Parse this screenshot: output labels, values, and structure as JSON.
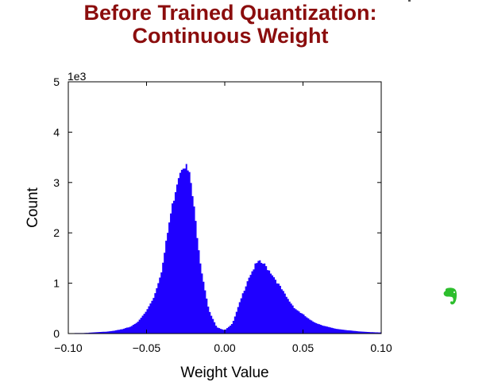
{
  "title": {
    "line1": "Before Trained Quantization:",
    "line2": "Continuous Weight"
  },
  "evernote_icon": {
    "icon": "evernote-elephant-icon",
    "color": "#2dbe2d"
  },
  "chart_data": {
    "type": "histogram",
    "xlabel": "Weight Value",
    "ylabel": "Count",
    "y_scale_label": "1e3",
    "xlim": [
      -0.1,
      0.1
    ],
    "ylim": [
      0,
      5000
    ],
    "xticks": [
      -0.1,
      -0.05,
      0.0,
      0.05,
      0.1
    ],
    "xtick_labels": [
      "−0.10",
      "−0.05",
      "0.00",
      "0.05",
      "0.10"
    ],
    "yticks": [
      0,
      1000,
      2000,
      3000,
      4000,
      5000
    ],
    "ytick_labels": [
      "0",
      "1",
      "2",
      "3",
      "4",
      "5"
    ],
    "bar_color": "#1f00ff",
    "grid": false,
    "bins": {
      "x": [
        -0.1,
        -0.095,
        -0.09,
        -0.085,
        -0.08,
        -0.075,
        -0.07,
        -0.065,
        -0.06,
        -0.055,
        -0.05,
        -0.045,
        -0.04,
        -0.035,
        -0.03,
        -0.027,
        -0.025,
        -0.022,
        -0.02,
        -0.015,
        -0.01,
        -0.005,
        0.0,
        0.005,
        0.01,
        0.015,
        0.02,
        0.022,
        0.025,
        0.03,
        0.035,
        0.04,
        0.045,
        0.05,
        0.055,
        0.06,
        0.065,
        0.07,
        0.075,
        0.08,
        0.085,
        0.09,
        0.095,
        0.1
      ],
      "y": [
        0,
        10,
        10,
        20,
        30,
        40,
        60,
        90,
        140,
        250,
        450,
        750,
        1300,
        2300,
        3100,
        3380,
        3350,
        3100,
        2600,
        1300,
        450,
        120,
        70,
        200,
        650,
        1100,
        1380,
        1420,
        1380,
        1200,
        950,
        700,
        500,
        380,
        260,
        190,
        140,
        100,
        80,
        60,
        45,
        35,
        25,
        20
      ]
    }
  }
}
